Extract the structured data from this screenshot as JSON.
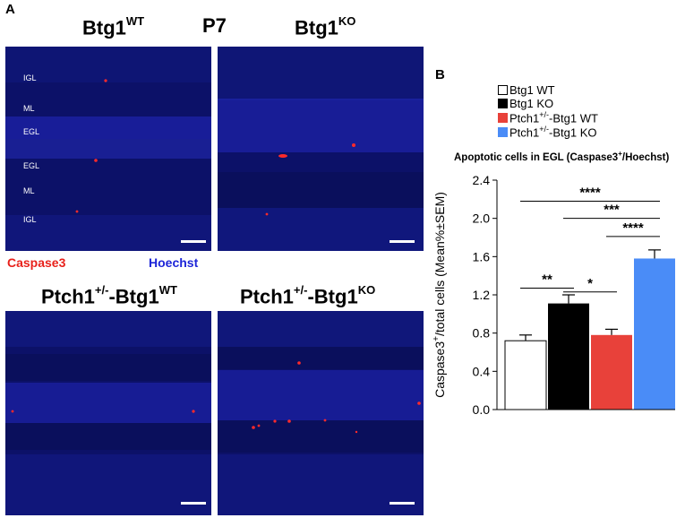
{
  "panel_a": {
    "letter": "A",
    "timepoint": "P7",
    "images": [
      {
        "title": "Btg1",
        "sup": "WT",
        "prefix": "",
        "prefix_sup": ""
      },
      {
        "title": "Btg1",
        "sup": "KO",
        "prefix": "",
        "prefix_sup": ""
      },
      {
        "title": "Btg1",
        "sup": "WT",
        "prefix": "Ptch1",
        "prefix_sup": "+/-"
      },
      {
        "title": "Btg1",
        "sup": "KO",
        "prefix": "Ptch1",
        "prefix_sup": "+/-"
      }
    ],
    "layer_labels": [
      "IGL",
      "ML",
      "EGL",
      "EGL",
      "ML",
      "IGL"
    ],
    "stain_red": "Caspase3",
    "stain_blue": "Hoechst",
    "colors": {
      "tissue": "#0c1168",
      "red_signal": "#ff2a2a",
      "red_text": "#e8211b",
      "blue_text": "#1d25d8"
    }
  },
  "panel_b": {
    "letter": "B",
    "legend": [
      {
        "pre": "Btg1 WT",
        "sup": "",
        "post": "",
        "color": "#ffffff"
      },
      {
        "pre": "Btg1 KO",
        "sup": "",
        "post": "",
        "color": "#000000"
      },
      {
        "pre": "Ptch1",
        "sup": "+/-",
        "post": "Btg1 WT",
        "color": "#e8413a"
      },
      {
        "pre": "Ptch1",
        "sup": "+/-",
        "post": "Btg1 KO",
        "color": "#4a8cf7"
      }
    ],
    "chart_title_pre": "Apoptotic cells in EGL (Caspase3",
    "chart_title_sup": "+",
    "chart_title_post": "/Hoechst)"
  },
  "chart_data": {
    "type": "bar",
    "categories": [
      "Btg1 WT",
      "Btg1 KO",
      "Ptch1+/-Btg1 WT",
      "Ptch1+/-Btg1 KO"
    ],
    "values": [
      0.72,
      1.11,
      0.78,
      1.58
    ],
    "errors": [
      0.06,
      0.09,
      0.06,
      0.09
    ],
    "colors": [
      "#ffffff",
      "#000000",
      "#e8413a",
      "#4a8cf7"
    ],
    "ylabel_pre": "Caspase3",
    "ylabel_sup": "+",
    "ylabel_post": "/total cells (Mean%±SEM)",
    "yticks": [
      "0.0",
      "0.4",
      "0.8",
      "1.2",
      "1.6",
      "2.0",
      "2.4"
    ],
    "ylim": [
      0,
      2.4
    ],
    "significance": [
      {
        "from": 0,
        "to": 1,
        "label": "**",
        "y": 1.27
      },
      {
        "from": 1,
        "to": 2,
        "label": "*",
        "y": 1.23
      },
      {
        "from": 0,
        "to": 3,
        "label": "****",
        "y": 2.18
      },
      {
        "from": 1,
        "to": 3,
        "label": "***",
        "y": 2.0
      },
      {
        "from": 2,
        "to": 3,
        "label": "****",
        "y": 1.81
      }
    ]
  }
}
